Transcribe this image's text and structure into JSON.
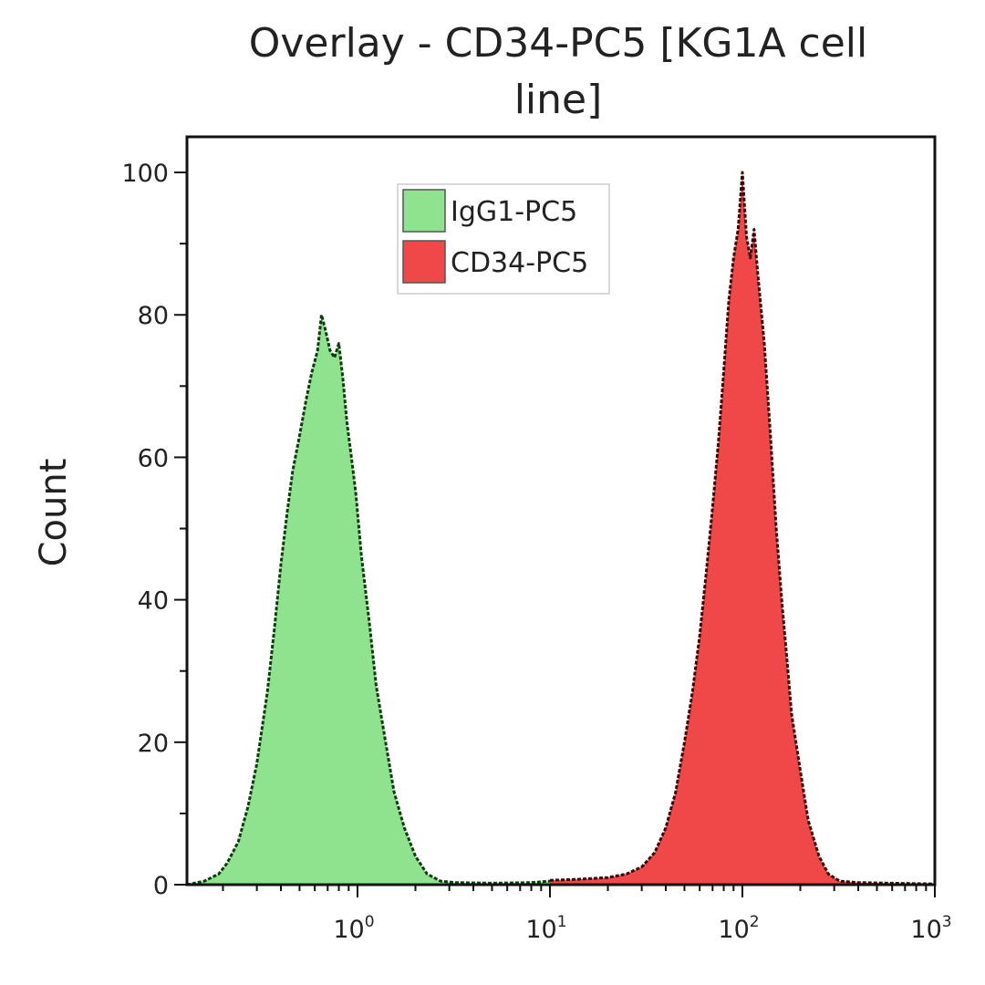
{
  "chart_data": {
    "type": "area",
    "title_line1": "Overlay - CD34-PC5 [KG1A cell",
    "title_line2": "line]",
    "xlabel": "",
    "ylabel": "Count",
    "x_scale": "log",
    "xlim": [
      0.13,
      1000
    ],
    "ylim": [
      0,
      105
    ],
    "x_ticks": [
      {
        "value": 1,
        "base": "10",
        "exp": "0"
      },
      {
        "value": 10,
        "base": "10",
        "exp": "1"
      },
      {
        "value": 100,
        "base": "10",
        "exp": "2"
      },
      {
        "value": 1000,
        "base": "10",
        "exp": "3"
      }
    ],
    "y_ticks": [
      {
        "value": 0,
        "label": "0"
      },
      {
        "value": 20,
        "label": "20"
      },
      {
        "value": 40,
        "label": "40"
      },
      {
        "value": 60,
        "label": "60"
      },
      {
        "value": 80,
        "label": "80"
      },
      {
        "value": 100,
        "label": "100"
      }
    ],
    "grid": false,
    "legend_position": "top-center",
    "series": [
      {
        "name": "IgG1-PC5",
        "color": "#8fe38f",
        "edge": "#0d3d0d",
        "points": [
          [
            0.13,
            0
          ],
          [
            0.16,
            0.5
          ],
          [
            0.19,
            1.5
          ],
          [
            0.21,
            3
          ],
          [
            0.24,
            6
          ],
          [
            0.27,
            11
          ],
          [
            0.3,
            17
          ],
          [
            0.34,
            27
          ],
          [
            0.37,
            36
          ],
          [
            0.4,
            45
          ],
          [
            0.43,
            52
          ],
          [
            0.46,
            58
          ],
          [
            0.5,
            63
          ],
          [
            0.54,
            68
          ],
          [
            0.58,
            72
          ],
          [
            0.62,
            75
          ],
          [
            0.65,
            80
          ],
          [
            0.68,
            78
          ],
          [
            0.72,
            75
          ],
          [
            0.76,
            74
          ],
          [
            0.8,
            76
          ],
          [
            0.84,
            71
          ],
          [
            0.88,
            65
          ],
          [
            0.93,
            60
          ],
          [
            0.98,
            55
          ],
          [
            1.05,
            46
          ],
          [
            1.15,
            37
          ],
          [
            1.25,
            28
          ],
          [
            1.4,
            20
          ],
          [
            1.55,
            13
          ],
          [
            1.75,
            8
          ],
          [
            2.0,
            4
          ],
          [
            2.3,
            1.5
          ],
          [
            2.7,
            0.5
          ],
          [
            3.2,
            0.3
          ],
          [
            5,
            0.2
          ],
          [
            8,
            0.3
          ],
          [
            10,
            0.5
          ]
        ]
      },
      {
        "name": "CD34-PC5",
        "color": "#f04848",
        "edge": "#3a0505",
        "points": [
          [
            10,
            0.6
          ],
          [
            15,
            0.8
          ],
          [
            20,
            1
          ],
          [
            25,
            1.5
          ],
          [
            30,
            2.5
          ],
          [
            35,
            4.5
          ],
          [
            40,
            8
          ],
          [
            45,
            13
          ],
          [
            50,
            20
          ],
          [
            55,
            27
          ],
          [
            60,
            35
          ],
          [
            65,
            44
          ],
          [
            70,
            53
          ],
          [
            75,
            62
          ],
          [
            80,
            72
          ],
          [
            85,
            82
          ],
          [
            90,
            88
          ],
          [
            95,
            92
          ],
          [
            100,
            100
          ],
          [
            105,
            91
          ],
          [
            110,
            88
          ],
          [
            115,
            92
          ],
          [
            120,
            86
          ],
          [
            130,
            76
          ],
          [
            140,
            63
          ],
          [
            150,
            50
          ],
          [
            160,
            40
          ],
          [
            170,
            32
          ],
          [
            180,
            24
          ],
          [
            200,
            16
          ],
          [
            220,
            9
          ],
          [
            250,
            4
          ],
          [
            280,
            1.5
          ],
          [
            320,
            0.5
          ],
          [
            400,
            0.3
          ],
          [
            600,
            0.2
          ],
          [
            1000,
            0.1
          ]
        ]
      }
    ]
  }
}
